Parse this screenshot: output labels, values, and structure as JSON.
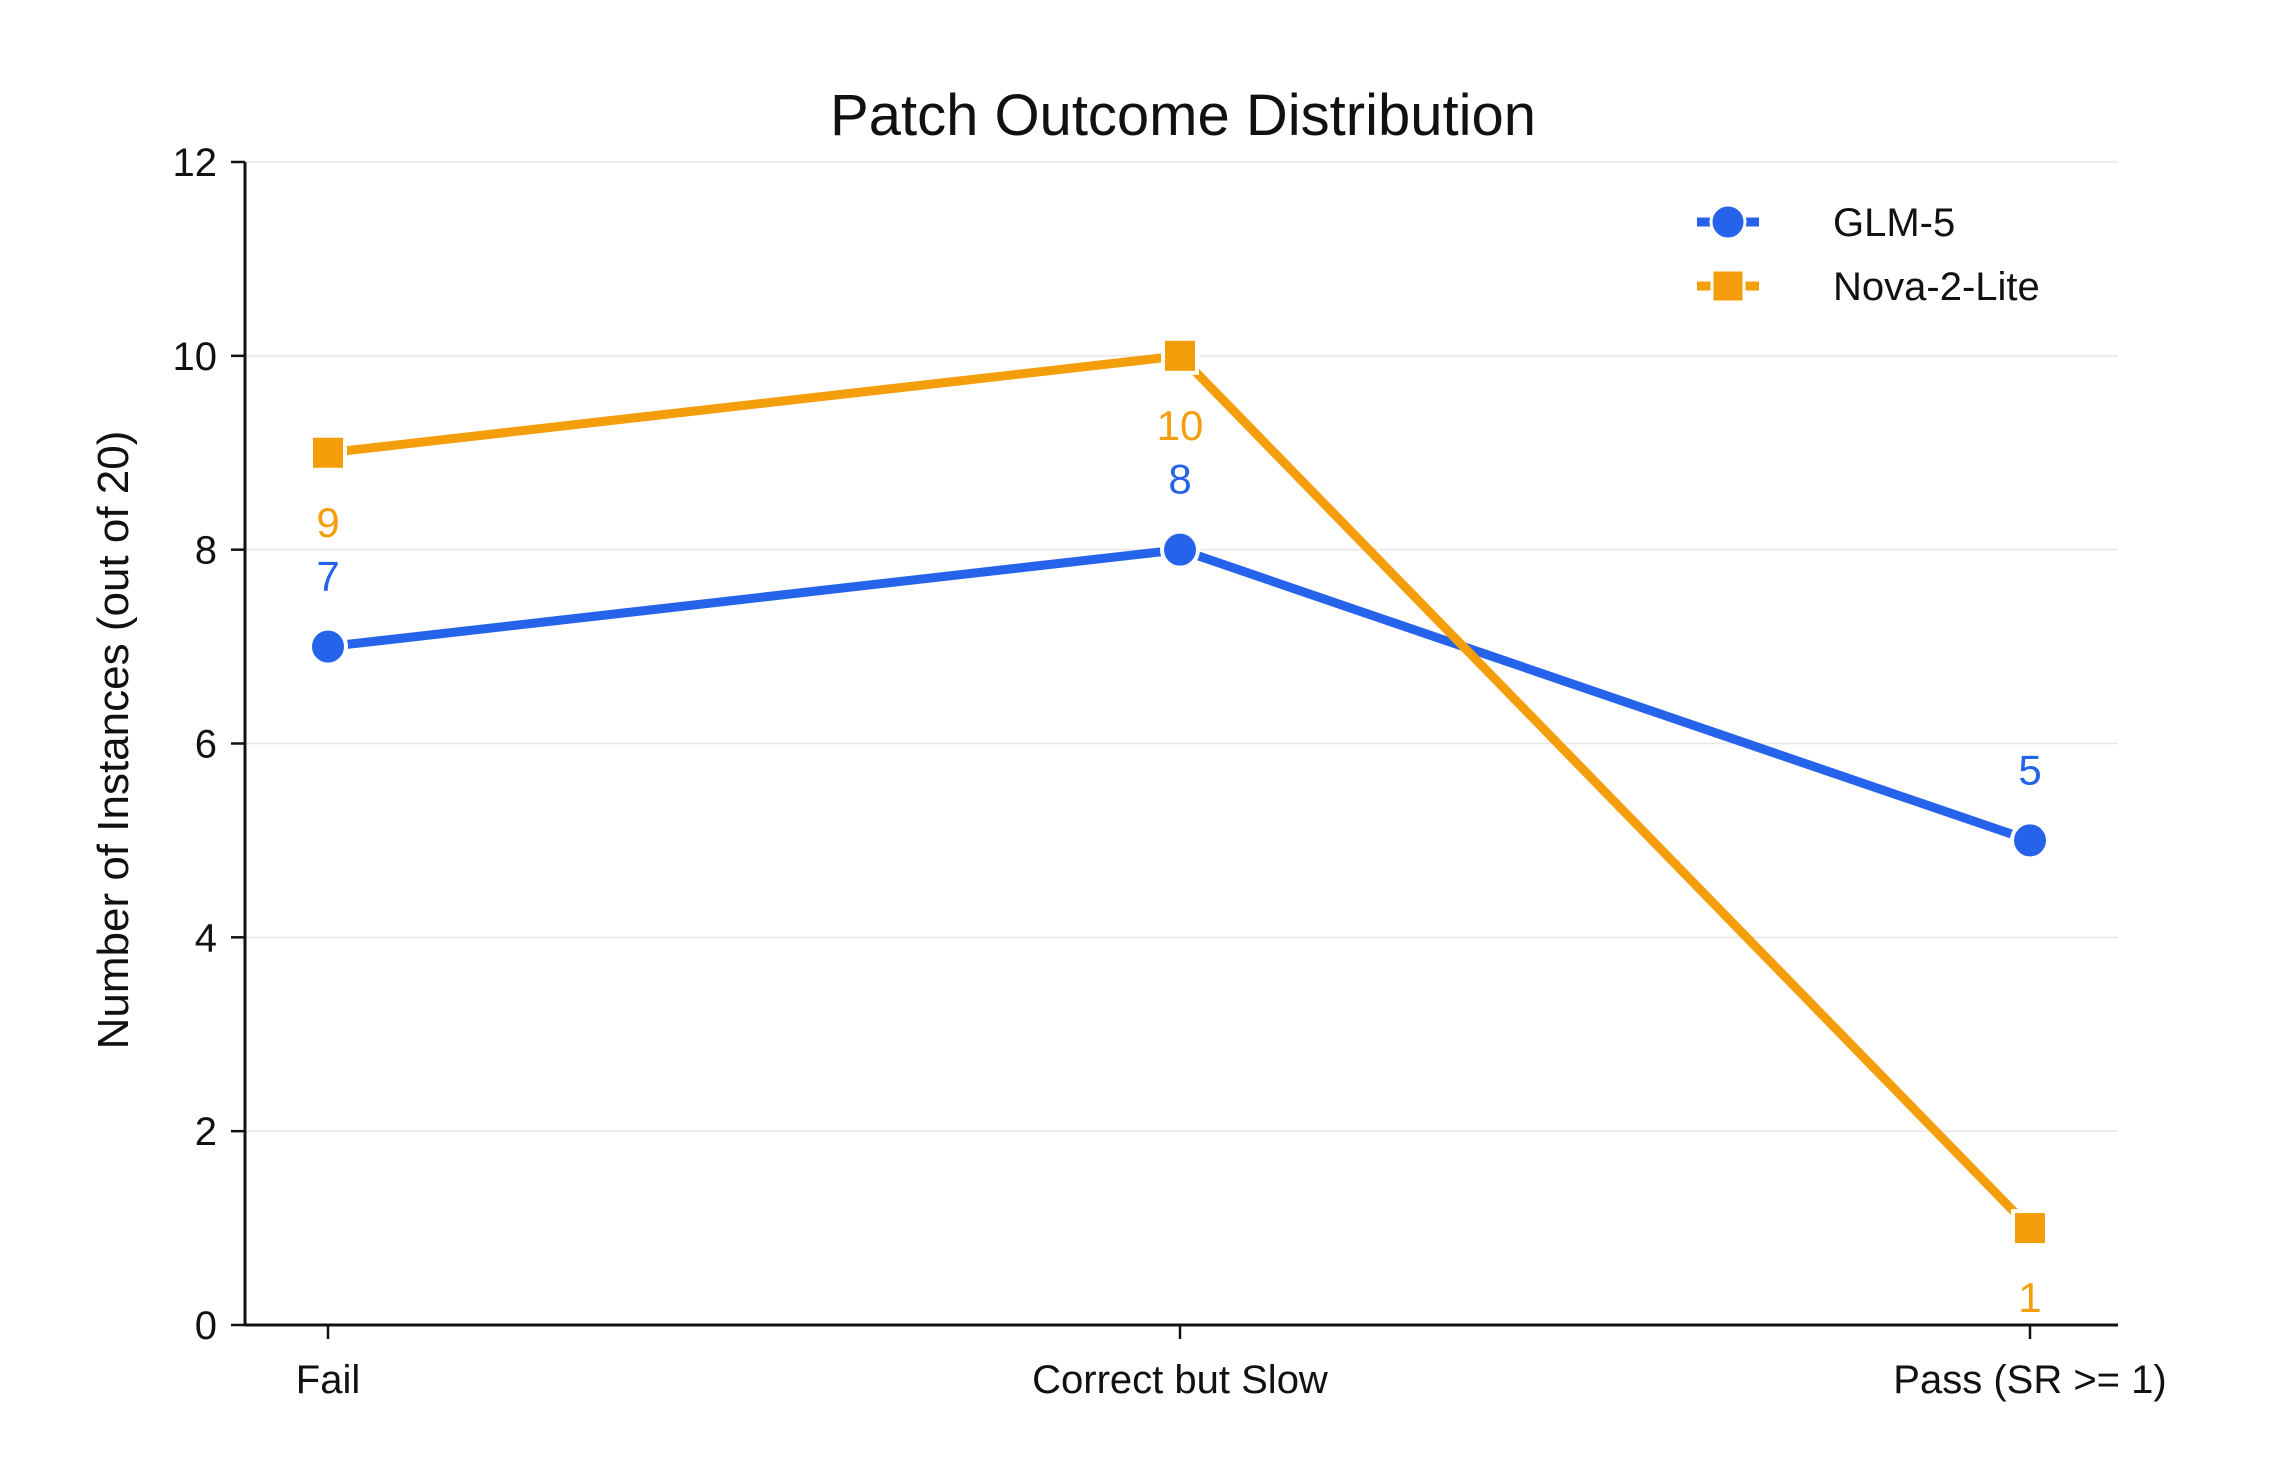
{
  "chart_data": {
    "type": "line",
    "title": "Patch Outcome Distribution",
    "xlabel": "",
    "ylabel": "Number of Instances (out of 20)",
    "categories": [
      "Fail",
      "Correct but Slow",
      "Pass (SR >= 1)"
    ],
    "ylim": [
      0,
      12
    ],
    "yticks": [
      0,
      2,
      4,
      6,
      8,
      10,
      12
    ],
    "grid": "horizontal",
    "legend_position": "top-right",
    "series": [
      {
        "name": "GLM-5",
        "values": [
          7,
          8,
          5
        ],
        "color": "#2563eb",
        "marker": "circle",
        "label_offsets": [
          1,
          1,
          1
        ]
      },
      {
        "name": "Nova-2-Lite",
        "values": [
          9,
          10,
          1
        ],
        "color": "#f59e0b",
        "marker": "square",
        "label_offsets": [
          -1,
          -1,
          -1
        ]
      }
    ]
  }
}
